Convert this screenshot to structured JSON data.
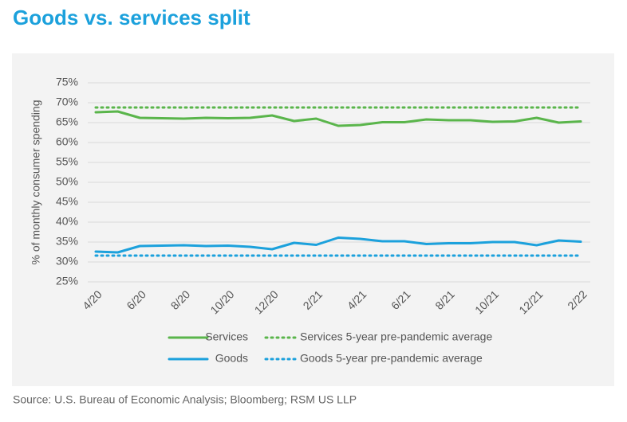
{
  "chart_data": {
    "type": "line",
    "title": "Goods vs. services split",
    "y_label": "% of monthly consumer spending",
    "source": "Source: U.S. Bureau of Economic Analysis; Bloomberg; RSM US LLP",
    "categories": [
      "4/20",
      null,
      "6/20",
      null,
      "8/20",
      null,
      "10/20",
      null,
      "12/20",
      null,
      "2/21",
      null,
      "4/21",
      null,
      "6/21",
      null,
      "8/21",
      null,
      "10/21",
      null,
      "12/21",
      null,
      "2/22"
    ],
    "series": [
      {
        "name": "Services",
        "color": "#5ab54b",
        "line_style": "solid",
        "values": [
          67.6,
          67.8,
          66.2,
          66.1,
          66.0,
          66.2,
          66.1,
          66.2,
          66.8,
          65.4,
          66.0,
          64.2,
          64.4,
          65.1,
          65.1,
          65.8,
          65.6,
          65.6,
          65.2,
          65.3,
          66.2,
          65.0,
          65.3
        ]
      },
      {
        "name": "Services 5-year pre-pandemic average",
        "color": "#5ab54b",
        "line_style": "dotted",
        "values": [
          68.8,
          68.8,
          68.8,
          68.8,
          68.8,
          68.8,
          68.8,
          68.8,
          68.8,
          68.8,
          68.8,
          68.8,
          68.8,
          68.8,
          68.8,
          68.8,
          68.8,
          68.8,
          68.8,
          68.8,
          68.8,
          68.8,
          68.8
        ]
      },
      {
        "name": "Goods",
        "color": "#1ca1dc",
        "line_style": "solid",
        "values": [
          32.6,
          32.4,
          34.0,
          34.1,
          34.2,
          34.0,
          34.1,
          33.8,
          33.2,
          34.8,
          34.3,
          36.1,
          35.8,
          35.2,
          35.2,
          34.5,
          34.7,
          34.7,
          35.0,
          35.0,
          34.2,
          35.4,
          35.1
        ]
      },
      {
        "name": "Goods 5-year pre-pandemic average",
        "color": "#1ca1dc",
        "line_style": "dotted",
        "values": [
          31.6,
          31.6,
          31.6,
          31.6,
          31.6,
          31.6,
          31.6,
          31.6,
          31.6,
          31.6,
          31.6,
          31.6,
          31.6,
          31.6,
          31.6,
          31.6,
          31.6,
          31.6,
          31.6,
          31.6,
          31.6,
          31.6,
          31.6
        ]
      }
    ],
    "ylim": [
      25,
      75
    ],
    "yticks": [
      {
        "value": 25,
        "label": "25%"
      },
      {
        "value": 30,
        "label": "30%"
      },
      {
        "value": 35,
        "label": "35%"
      },
      {
        "value": 40,
        "label": "40%"
      },
      {
        "value": 45,
        "label": "45%"
      },
      {
        "value": 50,
        "label": "50%"
      },
      {
        "value": 55,
        "label": "55%"
      },
      {
        "value": 60,
        "label": "60%"
      },
      {
        "value": 65,
        "label": "65%"
      },
      {
        "value": 70,
        "label": "70%"
      },
      {
        "value": 75,
        "label": "75%"
      }
    ],
    "grid": true,
    "legend": "bottom"
  }
}
